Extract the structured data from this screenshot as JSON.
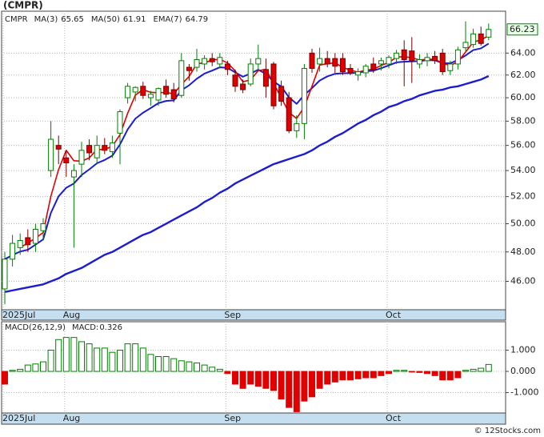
{
  "title": "(CMPR)",
  "footer": "© 12Stocks.com",
  "chart_data": [
    {
      "type": "candlestick",
      "symbol": "CMPR",
      "categories": [
        "2025Jul",
        null,
        null,
        null,
        null,
        null,
        null,
        null,
        "Aug",
        null,
        null,
        null,
        null,
        null,
        null,
        null,
        null,
        null,
        null,
        null,
        null,
        null,
        null,
        null,
        null,
        null,
        null,
        null,
        null,
        "Sep",
        null,
        null,
        null,
        null,
        null,
        null,
        null,
        null,
        null,
        null,
        null,
        null,
        null,
        null,
        null,
        null,
        null,
        null,
        null,
        null,
        "Oct",
        null,
        null,
        null,
        null,
        null,
        null,
        null,
        null,
        null,
        null,
        null,
        null,
        null
      ],
      "open": [
        45.5,
        47.5,
        48.3,
        49,
        48.6,
        49.5,
        54,
        56,
        55,
        53.5,
        54.5,
        56,
        55,
        56,
        55.5,
        57,
        60,
        60.5,
        61,
        60,
        59.8,
        61,
        60.7,
        60.2,
        62.7,
        62.7,
        63,
        63.5,
        63,
        63,
        62,
        61.2,
        61.2,
        63,
        62.5,
        63,
        61,
        60,
        57.2,
        57.8,
        64,
        63,
        63.5,
        63.5,
        63.5,
        62.6,
        62,
        62.2,
        63,
        63,
        63,
        63.5,
        64.3,
        64.2,
        63,
        63.3,
        63.7,
        64,
        62.4,
        63,
        64.5,
        64.8,
        65.8,
        65.5
      ],
      "high": [
        48,
        49.2,
        49.3,
        49.6,
        50,
        50.4,
        58,
        56.8,
        55.5,
        54.5,
        56.3,
        56.5,
        56.8,
        56.6,
        56.8,
        59,
        61.3,
        61,
        61.4,
        60.6,
        60.9,
        61.6,
        61.3,
        64,
        63,
        64.4,
        63.8,
        64,
        64,
        63.3,
        62.5,
        61.6,
        63.5,
        64.8,
        63.5,
        63.2,
        61.5,
        60.5,
        58.5,
        63,
        64.4,
        64.5,
        64.2,
        64,
        64,
        63,
        62.6,
        63,
        63.6,
        63.6,
        63.8,
        64.3,
        65.2,
        65.5,
        63.9,
        64,
        64.2,
        64.4,
        63.3,
        64.6,
        67,
        66.3,
        66.5,
        66.8
      ],
      "low": [
        44.5,
        47,
        47.8,
        48,
        48,
        48.8,
        53.5,
        54.5,
        53.5,
        48.3,
        53.5,
        54.8,
        54.5,
        55.3,
        55,
        54.5,
        59.5,
        59.7,
        59.9,
        59.3,
        59.3,
        60,
        59.6,
        60,
        61.5,
        62.3,
        62.5,
        62.8,
        62.6,
        62,
        60.5,
        60.4,
        61,
        62.5,
        60,
        59,
        59.3,
        57,
        56.6,
        56.5,
        62.2,
        62.3,
        62.7,
        62.2,
        62,
        62,
        61.5,
        61.8,
        62.2,
        62.4,
        62.6,
        63,
        61,
        61.3,
        62.6,
        62.8,
        63,
        62,
        62,
        62.5,
        64.2,
        64.5,
        64.7,
        65.2
      ],
      "close": [
        47.5,
        48.6,
        48.8,
        48.5,
        49.6,
        50,
        56.5,
        55.7,
        54.6,
        54,
        55.6,
        55.4,
        56,
        55.6,
        56.2,
        58.8,
        61,
        60.9,
        60.2,
        60.3,
        60.8,
        60.3,
        59.9,
        63.3,
        62.4,
        63.4,
        63.5,
        63.2,
        63.6,
        62.5,
        61,
        60.7,
        63,
        63.5,
        61,
        59.3,
        59.7,
        57.2,
        57.8,
        62.6,
        62.6,
        63.5,
        63,
        62.8,
        62.3,
        62.2,
        62.3,
        62.8,
        62.5,
        63.3,
        63.6,
        64,
        63.4,
        63.3,
        63.4,
        63.6,
        63.3,
        62.3,
        63,
        64.3,
        65,
        65.8,
        64.9,
        66.23
      ],
      "up_color": "#008000",
      "down_color": "#e00000",
      "series": [
        {
          "name": "MA(3)",
          "legend_value": 65.65,
          "color": "#e00000",
          "width": 1.6,
          "values": [
            null,
            null,
            48.3,
            48.63,
            48.97,
            49.37,
            52.03,
            54.07,
            55.6,
            54.77,
            54.73,
            55.0,
            55.67,
            55.67,
            55.93,
            56.87,
            58.67,
            60.23,
            60.7,
            60.47,
            60.43,
            60.47,
            60.33,
            61.17,
            61.87,
            63.03,
            63.1,
            63.37,
            63.43,
            63.1,
            62.37,
            61.4,
            61.57,
            62.4,
            62.5,
            61.27,
            60.0,
            58.73,
            58.23,
            59.2,
            61.0,
            62.9,
            63.03,
            63.1,
            62.7,
            62.43,
            62.27,
            62.43,
            62.53,
            62.87,
            63.13,
            63.63,
            63.67,
            63.57,
            63.37,
            63.43,
            63.43,
            63.07,
            62.87,
            63.2,
            64.1,
            65.03,
            65.23,
            65.64
          ]
        },
        {
          "name": "MA(50)",
          "legend_value": 61.91,
          "color": "#1c1cd0",
          "width": 2.4,
          "values": [
            45.3,
            45.4,
            45.5,
            45.6,
            45.7,
            45.8,
            46.0,
            46.2,
            46.5,
            46.7,
            46.9,
            47.2,
            47.5,
            47.8,
            48.0,
            48.3,
            48.6,
            48.9,
            49.2,
            49.4,
            49.7,
            50.0,
            50.3,
            50.6,
            50.9,
            51.2,
            51.6,
            51.9,
            52.3,
            52.6,
            53.0,
            53.3,
            53.6,
            53.9,
            54.2,
            54.5,
            54.7,
            54.9,
            55.1,
            55.3,
            55.6,
            56.0,
            56.3,
            56.7,
            57.0,
            57.4,
            57.8,
            58.1,
            58.5,
            58.8,
            59.2,
            59.4,
            59.7,
            59.9,
            60.2,
            60.4,
            60.6,
            60.7,
            60.9,
            61.0,
            61.2,
            61.4,
            61.6,
            61.91
          ]
        },
        {
          "name": "EMA(7)",
          "legend_value": 64.79,
          "color": "#1c1cd0",
          "width": 2,
          "values": [
            47.5,
            47.78,
            48.03,
            48.15,
            48.51,
            48.88,
            50.79,
            52.02,
            52.67,
            53.0,
            53.65,
            54.09,
            54.57,
            54.83,
            55.17,
            56.08,
            57.31,
            58.21,
            58.71,
            59.11,
            59.53,
            59.72,
            59.77,
            60.65,
            61.09,
            61.67,
            62.13,
            62.4,
            62.7,
            62.65,
            62.24,
            61.85,
            62.14,
            62.48,
            62.11,
            61.41,
            60.98,
            60.03,
            59.47,
            60.25,
            60.84,
            61.51,
            61.88,
            62.11,
            62.16,
            62.17,
            62.2,
            62.35,
            62.39,
            62.62,
            62.87,
            63.15,
            63.21,
            63.23,
            63.27,
            63.35,
            63.34,
            63.08,
            63.06,
            63.37,
            63.78,
            64.28,
            64.44,
            64.89
          ]
        }
      ],
      "log_scale": true,
      "grid": true,
      "ylim": [
        44.2,
        68
      ],
      "yticks": [
        {
          "value": 46,
          "label": "46.00"
        },
        {
          "value": 48,
          "label": "48.00"
        },
        {
          "value": 50,
          "label": "50.00"
        },
        {
          "value": 52,
          "label": "52.00"
        },
        {
          "value": 54,
          "label": "54.00"
        },
        {
          "value": 56,
          "label": "56.00"
        },
        {
          "value": 58,
          "label": "58.00"
        },
        {
          "value": 60,
          "label": "60.00"
        },
        {
          "value": 62,
          "label": "62.00"
        },
        {
          "value": 64,
          "label": "64.00"
        }
      ]
    },
    {
      "type": "bar",
      "title": "MACD(26,12,9)",
      "up_color": "#008000",
      "down_color": "#e00000",
      "series": [
        {
          "name": "MACD:",
          "legend_value": 0.326,
          "color": "#1c1cd0",
          "values": [
            -0.6,
            0.05,
            0.1,
            0.3,
            0.35,
            0.45,
            1.0,
            1.5,
            1.6,
            1.6,
            1.4,
            1.3,
            1.1,
            1.1,
            0.9,
            1.0,
            1.3,
            1.3,
            1.1,
            0.8,
            0.7,
            0.7,
            0.6,
            0.5,
            0.45,
            0.4,
            0.3,
            0.2,
            0.1,
            -0.1,
            -0.6,
            -0.8,
            -0.6,
            -0.7,
            -0.8,
            -0.9,
            -1.3,
            -1.7,
            -1.9,
            -1.4,
            -1.2,
            -0.8,
            -0.6,
            -0.5,
            -0.4,
            -0.4,
            -0.35,
            -0.3,
            -0.3,
            -0.2,
            -0.1,
            0.05,
            0.05,
            -0.03,
            -0.05,
            -0.1,
            -0.2,
            -0.4,
            -0.4,
            -0.3,
            0.05,
            0.1,
            0.15,
            0.326
          ]
        }
      ],
      "grid": true,
      "ylim": [
        -1.96,
        2.34
      ],
      "yticks": [
        {
          "value": 1,
          "label": "1.000"
        },
        {
          "value": 0,
          "label": "0.000"
        },
        {
          "value": -1,
          "label": "-1.000"
        }
      ]
    }
  ]
}
